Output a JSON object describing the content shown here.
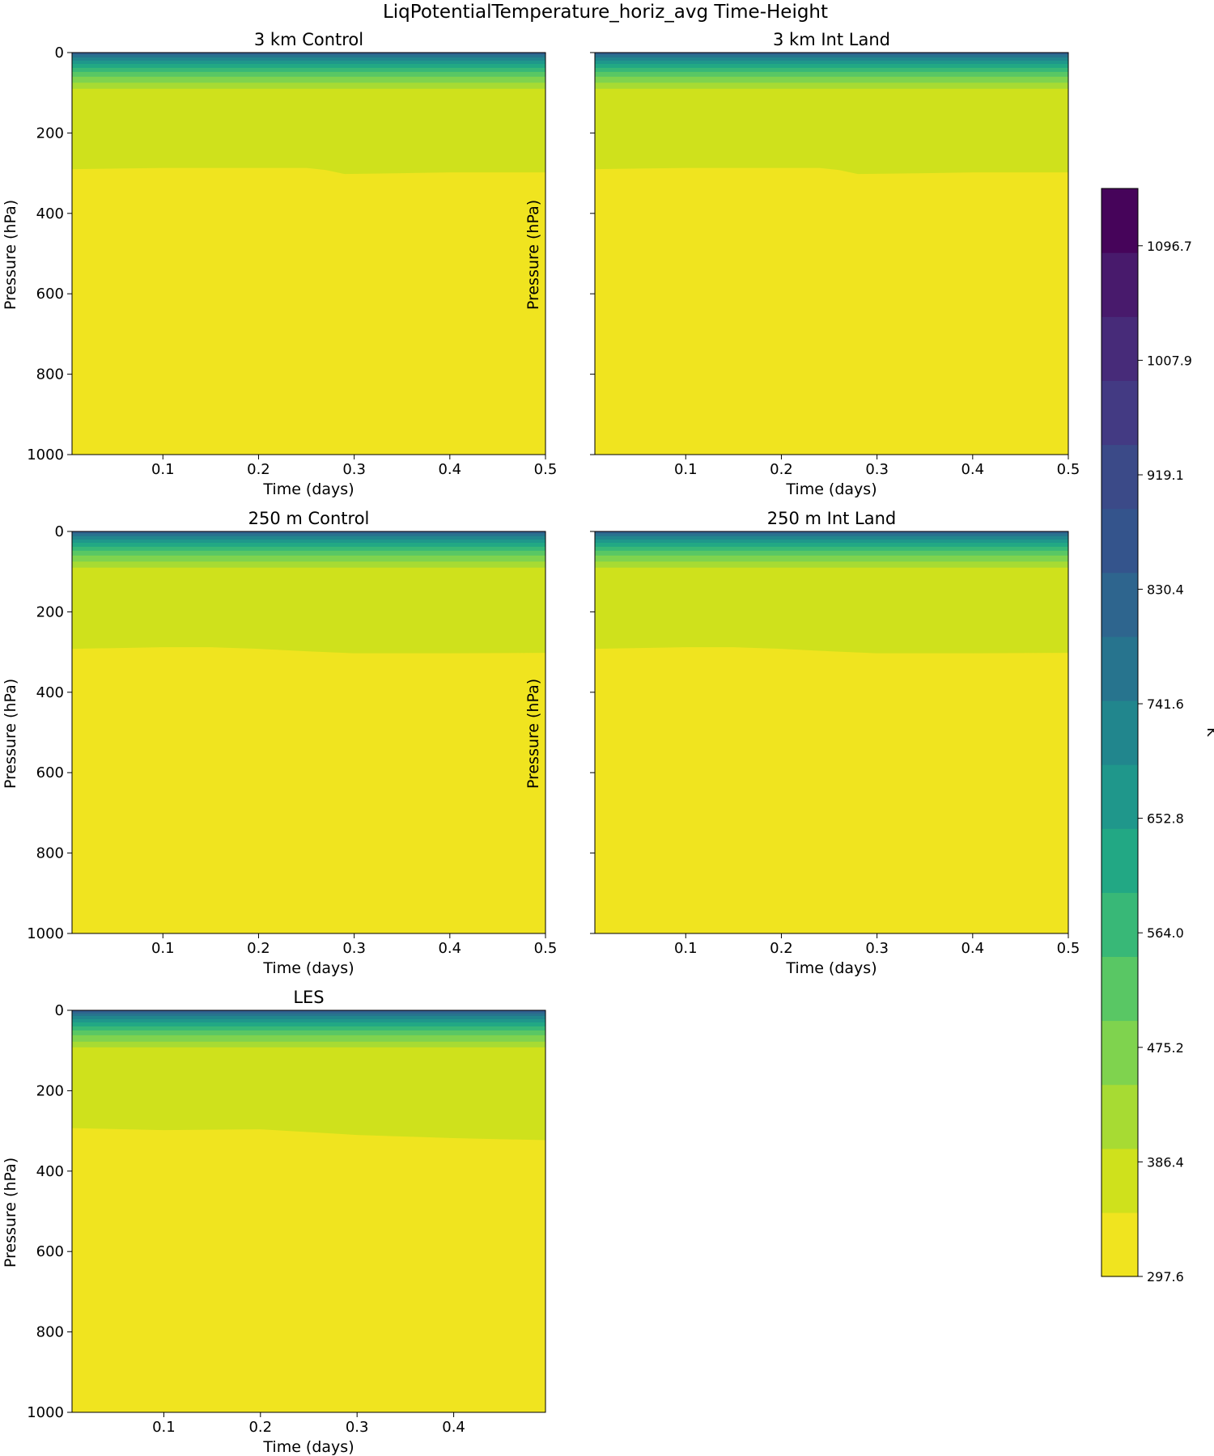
{
  "chart_data": {
    "type": "heatmap",
    "suptitle": "LiqPotentialTemperature_horiz_avg Time-Height",
    "xlabel": "Time (days)",
    "ylabel": "Pressure (hPa)",
    "ylim": [
      1000,
      0
    ],
    "colorbar": {
      "label": "K",
      "colormap": "viridis",
      "range": [
        297.6,
        1141.1
      ],
      "levels": 19,
      "ticks": [
        "297.6",
        "386.4",
        "475.2",
        "564.0",
        "652.8",
        "741.6",
        "830.4",
        "919.1",
        "1007.9",
        "1096.7"
      ],
      "tick_values": [
        297.6,
        386.4,
        475.2,
        564.0,
        652.8,
        741.6,
        830.4,
        919.1,
        1007.9,
        1096.7
      ],
      "colors": [
        "#f0e41f",
        "#cfe11c",
        "#a7db33",
        "#7fd34e",
        "#59c764",
        "#38b877",
        "#22a884",
        "#1f978b",
        "#21868d",
        "#27748e",
        "#2e658e",
        "#34548c",
        "#3b4a88",
        "#433a83",
        "#472b79",
        "#481a6c",
        "#46045a"
      ]
    },
    "panels": [
      {
        "title": "3 km Control",
        "xlim": [
          0.005,
          0.5
        ],
        "xticks": [
          {
            "label": "0.1",
            "value": 0.1
          },
          {
            "label": "0.2",
            "value": 0.2
          },
          {
            "label": "0.3",
            "value": 0.3
          },
          {
            "label": "0.4",
            "value": 0.4
          },
          {
            "label": "0.5",
            "value": 0.5
          }
        ],
        "yticks": [
          {
            "label": "0",
            "value": 0
          },
          {
            "label": "200",
            "value": 200
          },
          {
            "label": "400",
            "value": 400
          },
          {
            "label": "600",
            "value": 600
          },
          {
            "label": "800",
            "value": 800
          },
          {
            "label": "1000",
            "value": 1000
          }
        ],
        "show_ytick_labels": true,
        "show_ylabel": true,
        "upper_bands_hpa": [
          90,
          75,
          60,
          48,
          38,
          28,
          20,
          12,
          6,
          2
        ],
        "boundary_time": [
          0.005,
          0.1,
          0.2,
          0.25,
          0.27,
          0.29,
          0.35,
          0.4,
          0.5
        ],
        "boundary_hpa": [
          290,
          287,
          287,
          287,
          292,
          302,
          300,
          298,
          298
        ]
      },
      {
        "title": "3 km Int Land",
        "xlim": [
          0.005,
          0.5
        ],
        "xticks": [
          {
            "label": "0.1",
            "value": 0.1
          },
          {
            "label": "0.2",
            "value": 0.2
          },
          {
            "label": "0.3",
            "value": 0.3
          },
          {
            "label": "0.4",
            "value": 0.4
          },
          {
            "label": "0.5",
            "value": 0.5
          }
        ],
        "yticks": [
          {
            "label": "0",
            "value": 0
          },
          {
            "label": "200",
            "value": 200
          },
          {
            "label": "400",
            "value": 400
          },
          {
            "label": "600",
            "value": 600
          },
          {
            "label": "800",
            "value": 800
          },
          {
            "label": "1000",
            "value": 1000
          }
        ],
        "show_ytick_labels": false,
        "show_ylabel": true,
        "upper_bands_hpa": [
          90,
          75,
          60,
          48,
          38,
          28,
          20,
          12,
          6,
          2
        ],
        "boundary_time": [
          0.005,
          0.1,
          0.2,
          0.24,
          0.26,
          0.28,
          0.35,
          0.4,
          0.5
        ],
        "boundary_hpa": [
          290,
          287,
          287,
          287,
          292,
          302,
          300,
          298,
          298
        ]
      },
      {
        "title": "250 m Control",
        "xlim": [
          0.005,
          0.5
        ],
        "xticks": [
          {
            "label": "0.1",
            "value": 0.1
          },
          {
            "label": "0.2",
            "value": 0.2
          },
          {
            "label": "0.3",
            "value": 0.3
          },
          {
            "label": "0.4",
            "value": 0.4
          },
          {
            "label": "0.5",
            "value": 0.5
          }
        ],
        "yticks": [
          {
            "label": "0",
            "value": 0
          },
          {
            "label": "200",
            "value": 200
          },
          {
            "label": "400",
            "value": 400
          },
          {
            "label": "600",
            "value": 600
          },
          {
            "label": "800",
            "value": 800
          },
          {
            "label": "1000",
            "value": 1000
          }
        ],
        "show_ytick_labels": true,
        "show_ylabel": true,
        "upper_bands_hpa": [
          90,
          75,
          60,
          48,
          38,
          28,
          20,
          12,
          6,
          2
        ],
        "boundary_time": [
          0.005,
          0.1,
          0.15,
          0.2,
          0.25,
          0.3,
          0.4,
          0.5
        ],
        "boundary_hpa": [
          292,
          288,
          288,
          292,
          298,
          303,
          303,
          302
        ]
      },
      {
        "title": "250 m Int Land",
        "xlim": [
          0.005,
          0.5
        ],
        "xticks": [
          {
            "label": "0.1",
            "value": 0.1
          },
          {
            "label": "0.2",
            "value": 0.2
          },
          {
            "label": "0.3",
            "value": 0.3
          },
          {
            "label": "0.4",
            "value": 0.4
          },
          {
            "label": "0.5",
            "value": 0.5
          }
        ],
        "yticks": [
          {
            "label": "0",
            "value": 0
          },
          {
            "label": "200",
            "value": 200
          },
          {
            "label": "400",
            "value": 400
          },
          {
            "label": "600",
            "value": 600
          },
          {
            "label": "800",
            "value": 800
          },
          {
            "label": "1000",
            "value": 1000
          }
        ],
        "show_ytick_labels": false,
        "show_ylabel": true,
        "upper_bands_hpa": [
          90,
          75,
          60,
          48,
          38,
          28,
          20,
          12,
          6,
          2
        ],
        "boundary_time": [
          0.005,
          0.1,
          0.15,
          0.2,
          0.25,
          0.3,
          0.4,
          0.5
        ],
        "boundary_hpa": [
          292,
          288,
          288,
          292,
          298,
          303,
          303,
          302
        ]
      },
      {
        "title": "LES",
        "xlim": [
          0.005,
          0.495
        ],
        "xticks": [
          {
            "label": "0.1",
            "value": 0.1
          },
          {
            "label": "0.2",
            "value": 0.2
          },
          {
            "label": "0.3",
            "value": 0.3
          },
          {
            "label": "0.4",
            "value": 0.4
          }
        ],
        "yticks": [
          {
            "label": "0",
            "value": 0
          },
          {
            "label": "200",
            "value": 200
          },
          {
            "label": "400",
            "value": 400
          },
          {
            "label": "600",
            "value": 600
          },
          {
            "label": "800",
            "value": 800
          },
          {
            "label": "1000",
            "value": 1000
          }
        ],
        "show_ytick_labels": true,
        "show_ylabel": true,
        "upper_bands_hpa": [
          92,
          78,
          62,
          50,
          40,
          30,
          22,
          14,
          8,
          3
        ],
        "boundary_time": [
          0.005,
          0.1,
          0.2,
          0.3,
          0.4,
          0.495
        ],
        "boundary_hpa": [
          293,
          298,
          296,
          310,
          318,
          323
        ]
      }
    ]
  }
}
